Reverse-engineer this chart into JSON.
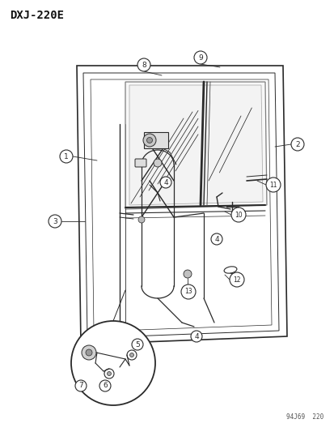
{
  "title": "DXJ-220E",
  "footer": "94J69  220",
  "bg_color": "#ffffff",
  "lc": "#2a2a2a",
  "fig_width": 4.14,
  "fig_height": 5.33,
  "dpi": 100
}
